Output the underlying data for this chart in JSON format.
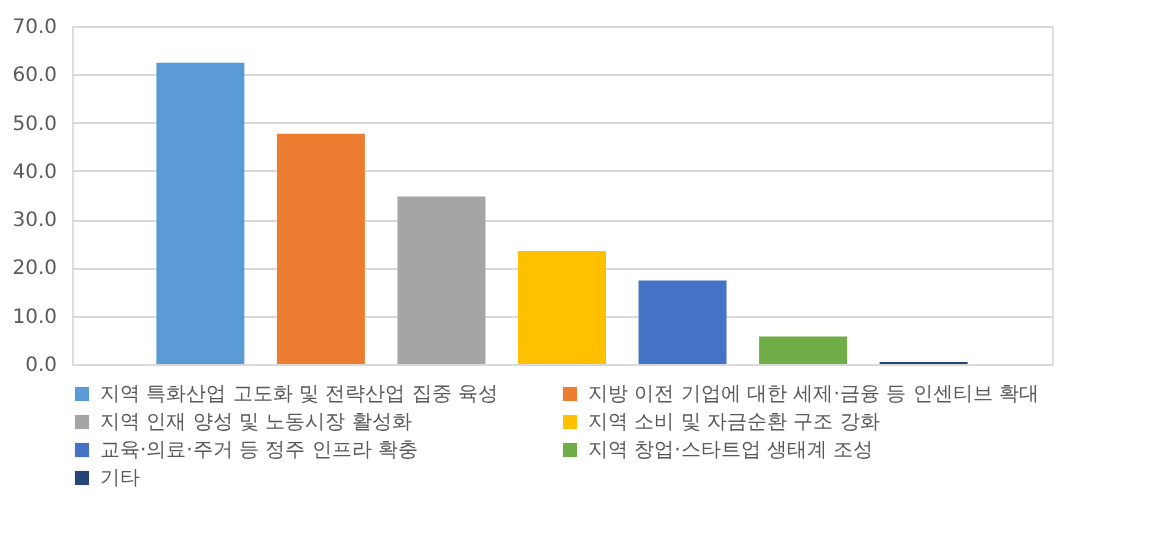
{
  "chart_data": {
    "type": "bar",
    "categories": [
      null
    ],
    "series": [
      {
        "name": "지역 특화산업 고도화 및 전략산업 집중 육성",
        "color": "#5b9bd5",
        "values": [
          62.4
        ]
      },
      {
        "name": "지방 이전 기업에 대한 세제·금융 등 인센티브 확대",
        "color": "#ed7d31",
        "values": [
          47.7
        ]
      },
      {
        "name": "지역 인재 양성 및 노동시장 활성화",
        "color": "#a5a5a5",
        "values": [
          34.7
        ]
      },
      {
        "name": "지역 소비 및 자금순환 구조 강화",
        "color": "#ffc000",
        "values": [
          23.4
        ]
      },
      {
        "name": "교육·의료·주거 등 정주 인프라 확충",
        "color": "#4472c4",
        "values": [
          17.3
        ]
      },
      {
        "name": "지역 창업·스타트업 생태계 조성",
        "color": "#70ad47",
        "values": [
          5.7
        ]
      },
      {
        "name": "기타",
        "color": "#264478",
        "values": [
          0.4
        ]
      }
    ],
    "ylim": [
      0,
      70
    ],
    "yticks": [
      {
        "value": 0,
        "label": "0.0"
      },
      {
        "value": 10,
        "label": "10.0"
      },
      {
        "value": 20,
        "label": "20.0"
      },
      {
        "value": 30,
        "label": "30.0"
      },
      {
        "value": 40,
        "label": "40.0"
      },
      {
        "value": 50,
        "label": "50.0"
      },
      {
        "value": 60,
        "label": "60.0"
      },
      {
        "value": 70,
        "label": "70.0"
      }
    ],
    "grid": "y",
    "legend": "bottom",
    "tick_labels": "y"
  }
}
